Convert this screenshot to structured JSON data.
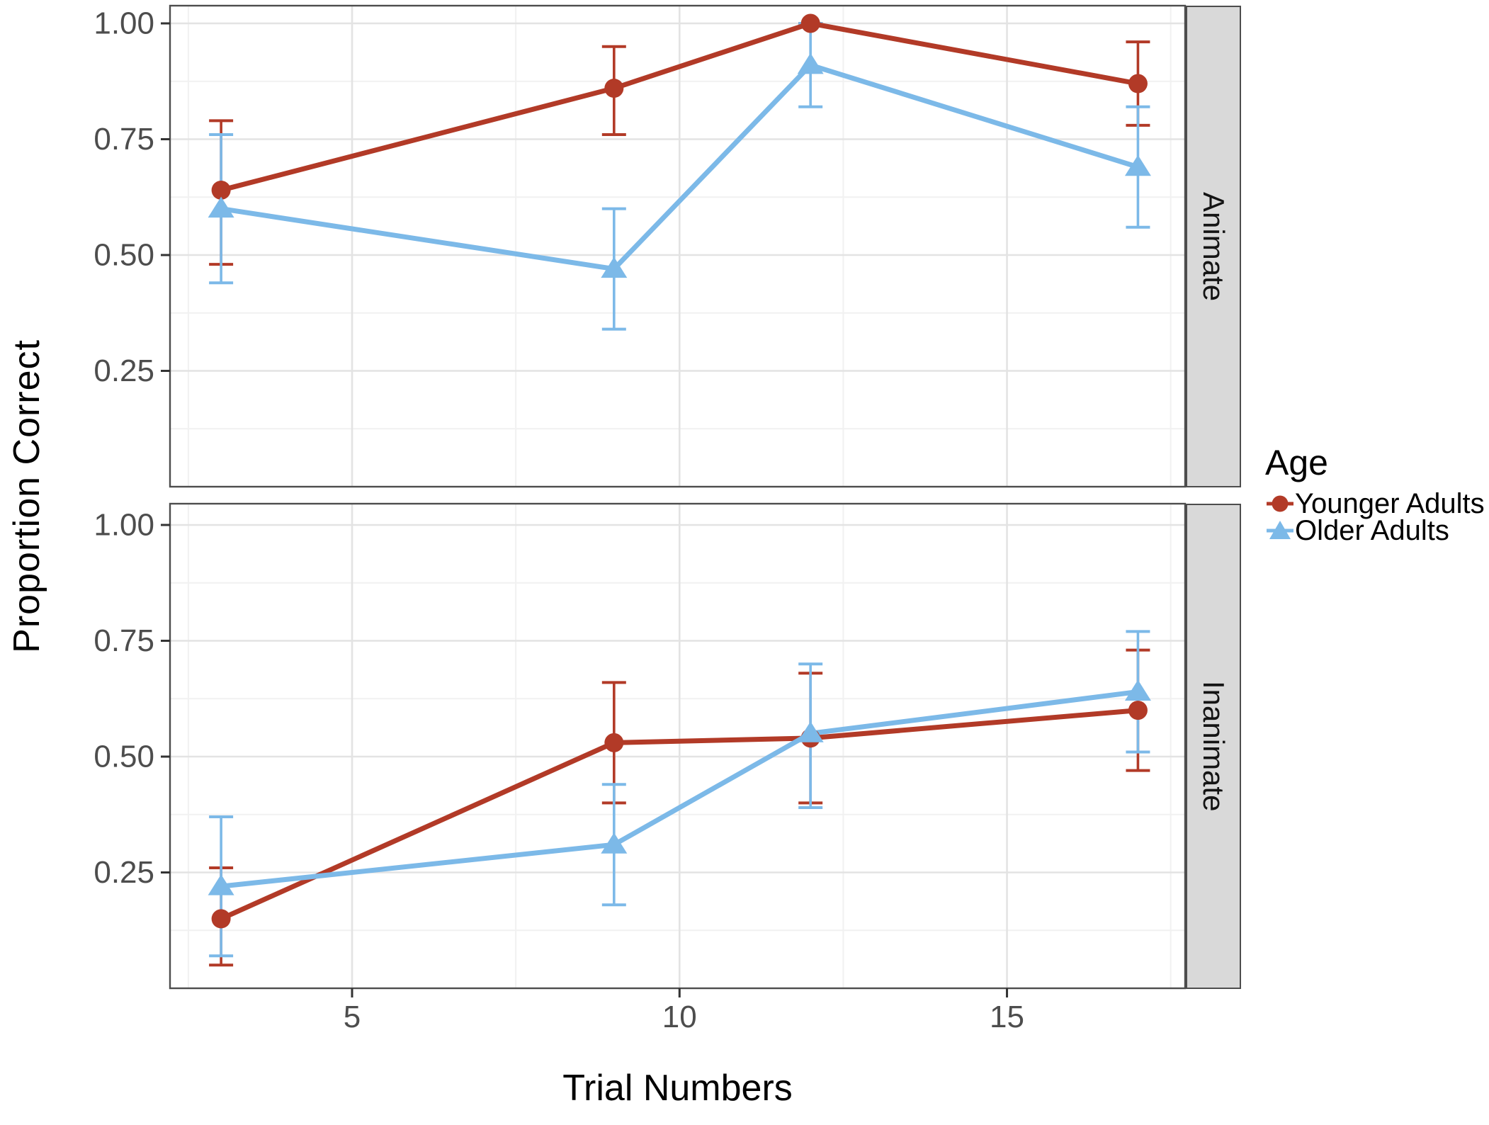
{
  "figure": {
    "y_axis_title": "Proportion Correct",
    "x_axis_title": "Trial Numbers",
    "legend": {
      "title": "Age",
      "items": [
        {
          "label": "Younger Adults",
          "color": "#b23a27",
          "marker": "circle"
        },
        {
          "label": "Older Adults",
          "color": "#7cb9e8",
          "marker": "triangle"
        }
      ]
    },
    "colors": {
      "younger_red": "#b23a27",
      "older_blue": "#7cb9e8",
      "strip_bg": "#d9d9d9",
      "panel_border": "#4d4d4d",
      "grid_major": "#e3e3e3",
      "grid_minor": "#f1f1f1",
      "tick_text": "#4d4d4d"
    }
  },
  "chart_data": {
    "type": "line",
    "title": "",
    "xlabel": "Trial Numbers",
    "ylabel": "Proportion Correct",
    "x": [
      3,
      9,
      12,
      17
    ],
    "x_ticks": [
      5,
      10,
      15
    ],
    "x_minor": [
      2.5,
      7.5,
      12.5,
      17.5
    ],
    "y_ticks": [
      "1.00",
      "0.75",
      "0.50",
      "0.25"
    ],
    "y_tick_values": [
      1.0,
      0.75,
      0.5,
      0.25
    ],
    "y_minor": [
      0.875,
      0.625,
      0.375,
      0.125
    ],
    "xlim": [
      2.22,
      17.72
    ],
    "ylim": [
      0,
      1.04
    ],
    "grid": "major+minor",
    "legend_position": "right",
    "error_bars": true,
    "facets": [
      {
        "name": "Animate",
        "series": [
          {
            "name": "Younger Adults",
            "marker": "circle",
            "color": "#b23a27",
            "y": [
              0.64,
              0.86,
              1.0,
              0.87
            ],
            "err_lo": [
              0.48,
              0.76,
              1.0,
              0.78
            ],
            "err_hi": [
              0.79,
              0.95,
              1.0,
              0.96
            ]
          },
          {
            "name": "Older Adults",
            "marker": "triangle",
            "color": "#7cb9e8",
            "y": [
              0.6,
              0.47,
              0.91,
              0.69
            ],
            "err_lo": [
              0.44,
              0.34,
              0.82,
              0.56
            ],
            "err_hi": [
              0.76,
              0.6,
              1.0,
              0.82
            ]
          }
        ]
      },
      {
        "name": "Inanimate",
        "series": [
          {
            "name": "Younger Adults",
            "marker": "circle",
            "color": "#b23a27",
            "y": [
              0.15,
              0.53,
              0.54,
              0.6
            ],
            "err_lo": [
              0.05,
              0.4,
              0.4,
              0.47
            ],
            "err_hi": [
              0.26,
              0.66,
              0.68,
              0.73
            ]
          },
          {
            "name": "Older Adults",
            "marker": "triangle",
            "color": "#7cb9e8",
            "y": [
              0.22,
              0.31,
              0.55,
              0.64
            ],
            "err_lo": [
              0.07,
              0.18,
              0.39,
              0.51
            ],
            "err_hi": [
              0.37,
              0.44,
              0.7,
              0.77
            ]
          }
        ]
      }
    ]
  }
}
